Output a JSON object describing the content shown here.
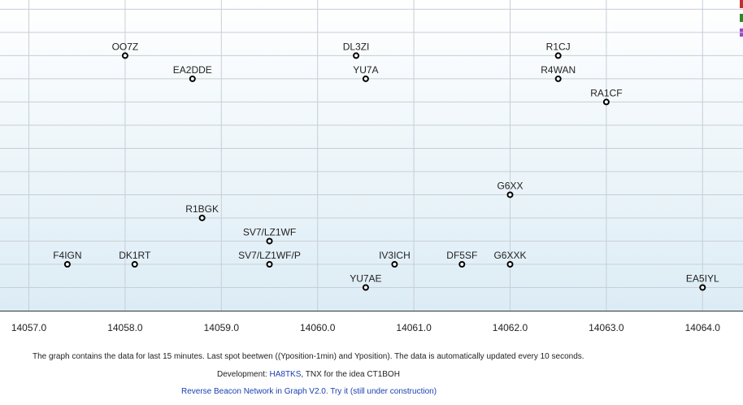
{
  "chart_data": {
    "type": "scatter",
    "labels": [
      "OO7Z",
      "DL3ZI",
      "R1CJ",
      "EA2DDE",
      "YU7A",
      "R4WAN",
      "RA1CF",
      "G6XX",
      "R1BGK",
      "SV7/LZ1WF",
      "F4IGN",
      "DK1RT",
      "SV7/LZ1WF/P",
      "IV3ICH",
      "DF5SF",
      "G6XXK",
      "YU7AE",
      "EA5IYL"
    ],
    "x": [
      14058.0,
      14060.4,
      14062.5,
      14058.7,
      14060.5,
      14062.5,
      14063.0,
      14062.0,
      14058.8,
      14059.5,
      14057.4,
      14058.1,
      14059.5,
      14060.8,
      14061.5,
      14062.0,
      14060.5,
      14064.0
    ],
    "y": [
      11,
      11,
      11,
      10,
      10,
      10,
      9,
      5,
      4,
      3,
      2,
      2,
      2,
      2,
      2,
      2,
      1,
      1
    ],
    "color": "#000000",
    "xlim": [
      14056.7,
      14064.42
    ],
    "ylim": [
      0,
      13.4
    ],
    "xticks": [
      {
        "value": 14057,
        "label": "14057.0"
      },
      {
        "value": 14058,
        "label": "14058.0"
      },
      {
        "value": 14059,
        "label": "14059.0"
      },
      {
        "value": 14060,
        "label": "14060.0"
      },
      {
        "value": 14061,
        "label": "14061.0"
      },
      {
        "value": 14062,
        "label": "14062.0"
      },
      {
        "value": 14063,
        "label": "14063.0"
      },
      {
        "value": 14064,
        "label": "14064.0"
      }
    ],
    "yticks": [
      1,
      2,
      3,
      4,
      5,
      6,
      7,
      8,
      9,
      10,
      11,
      12,
      13
    ],
    "grid": true
  },
  "footer": {
    "note": "The graph contains the data for last 15 minutes. Last spot beetwen ((Yposition-1min) and Yposition). The data is automatically updated every 10 seconds.",
    "dev_prefix": "Development:",
    "dev_link": "HA8TKS",
    "dev_suffix": ", TNX for the idea CT1BOH",
    "link": "Reverse Beacon Network in Graph V2.0. Try it (still under construction)"
  }
}
